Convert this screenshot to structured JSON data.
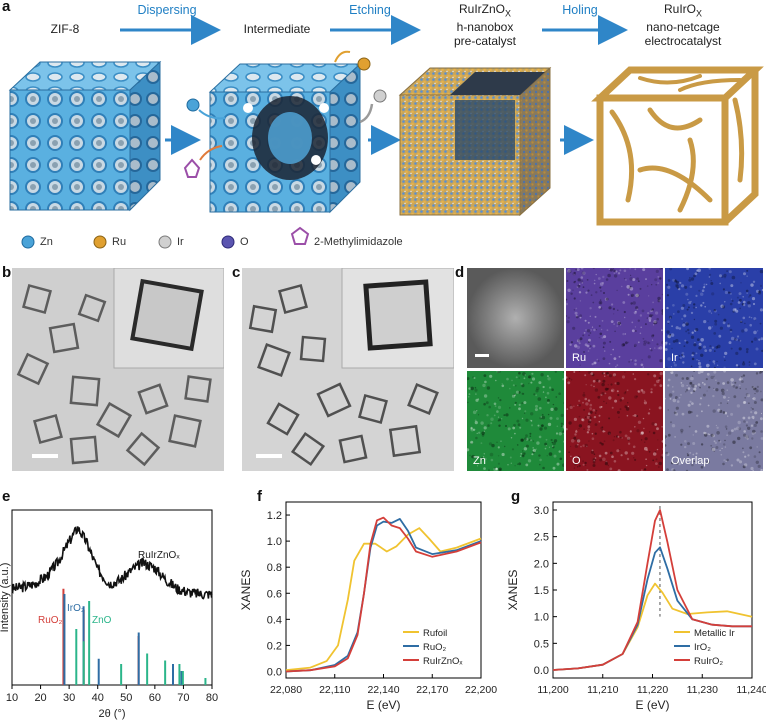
{
  "panel_letters": {
    "a": "a",
    "b": "b",
    "c": "c",
    "d": "d",
    "e": "e",
    "f": "f",
    "g": "g"
  },
  "panel_a": {
    "stages": {
      "s1": "ZIF-8",
      "s2": "Intermediate",
      "s3_line1": "RuIrZnO",
      "s3_sub": "X",
      "s3_line2": "h-nanobox",
      "s3_line3": "pre-catalyst",
      "s4_line1": "RuIrO",
      "s4_sub": "X",
      "s4_line2": "nano-netcage",
      "s4_line3": "electrocatalyst"
    },
    "steps": [
      "Dispersing",
      "Etching",
      "Holing"
    ],
    "legend": [
      {
        "label": "Zn",
        "color": "#4aa3d8"
      },
      {
        "label": "Ru",
        "color": "#e0a030"
      },
      {
        "label": "Ir",
        "color": "#cfcfcf"
      },
      {
        "label": "O",
        "color": "#5b55b0"
      },
      {
        "label": "2-Methylimidazole",
        "color": "#9b4fa8"
      }
    ],
    "colors": {
      "arrow": "#2f86c8",
      "zif_blue": "#4aa3d8",
      "ru_orange": "#d9a040",
      "dark_core": "#1a2a3a"
    }
  },
  "panel_d": {
    "labels": [
      "Ru",
      "Ir",
      "Zn",
      "O",
      "Overlap"
    ],
    "colors": {
      "ru": "#5a3f9e",
      "ir": "#2a3fa8",
      "zn": "#1f8a3a",
      "o": "#8a1420",
      "overlap": "#7a7aa0"
    }
  },
  "chart_data": [
    {
      "panel": "e",
      "type": "line",
      "ylabel": "Intensity (a.u.)",
      "xlabel": "2θ (°)",
      "xlim": [
        10,
        80
      ],
      "xticks": [
        10,
        20,
        30,
        40,
        50,
        60,
        70,
        80
      ],
      "series_label": "RuIrZnOₓ",
      "curve_x": [
        10,
        14,
        18,
        22,
        26,
        30,
        33,
        36,
        40,
        44,
        48,
        52,
        56,
        60,
        64,
        68,
        72,
        76,
        80
      ],
      "curve_y": [
        0.55,
        0.56,
        0.58,
        0.62,
        0.7,
        0.82,
        0.9,
        0.82,
        0.66,
        0.58,
        0.6,
        0.66,
        0.7,
        0.67,
        0.6,
        0.55,
        0.53,
        0.52,
        0.52
      ],
      "references": [
        {
          "name": "RuO₂",
          "color": "#d43f3a",
          "x": [
            28.0,
            35.1,
            54.3
          ],
          "h": [
            0.55,
            0.43,
            0.28
          ]
        },
        {
          "name": "IrO₂",
          "color": "#2e6da4",
          "x": [
            28.0,
            34.7,
            40.0,
            54.0,
            66.0,
            69.0
          ],
          "h": [
            0.52,
            0.45,
            0.15,
            0.3,
            0.12,
            0.08
          ]
        },
        {
          "name": "ZnO",
          "color": "#2bb58a",
          "x": [
            31.8,
            34.4,
            36.3,
            47.5,
            56.6,
            62.9,
            67.9,
            69.1,
            77.0
          ],
          "h": [
            0.32,
            0.25,
            0.48,
            0.12,
            0.18,
            0.14,
            0.12,
            0.08,
            0.04
          ]
        }
      ]
    },
    {
      "panel": "f",
      "type": "line",
      "ylabel": "XANES",
      "xlabel": "E (eV)",
      "xlim": [
        22080,
        22200
      ],
      "ylim": [
        -0.05,
        1.3
      ],
      "xticks": [
        "22,080",
        "22,110",
        "22,140",
        "22,170",
        "22,200"
      ],
      "xtick_values": [
        22080,
        22110,
        22140,
        22170,
        22200
      ],
      "yticks": [
        "0.0",
        "0.2",
        "0.4",
        "0.6",
        "0.8",
        "1.0",
        "1.2"
      ],
      "ytick_values": [
        0,
        0.2,
        0.4,
        0.6,
        0.8,
        1.0,
        1.2
      ],
      "legend_position": "bottom-right",
      "series": [
        {
          "name": "Rufoil",
          "color": "#f0c330",
          "x": [
            22080,
            22095,
            22105,
            22112,
            22118,
            22122,
            22128,
            22135,
            22142,
            22148,
            22155,
            22162,
            22168,
            22175,
            22185,
            22200
          ],
          "y": [
            0.01,
            0.03,
            0.08,
            0.2,
            0.55,
            0.85,
            0.98,
            0.98,
            0.92,
            0.96,
            1.05,
            1.1,
            1.02,
            0.92,
            0.95,
            1.02
          ]
        },
        {
          "name": "RuO₂",
          "color": "#2e6da4",
          "x": [
            22080,
            22095,
            22110,
            22118,
            22124,
            22128,
            22132,
            22136,
            22140,
            22145,
            22150,
            22155,
            22160,
            22170,
            22185,
            22200
          ],
          "y": [
            0.0,
            0.01,
            0.05,
            0.12,
            0.3,
            0.6,
            0.95,
            1.12,
            1.15,
            1.14,
            1.17,
            1.08,
            0.95,
            0.9,
            0.93,
            1.0
          ]
        },
        {
          "name": "RuIrZnOₓ",
          "color": "#d43f3a",
          "x": [
            22080,
            22095,
            22110,
            22118,
            22124,
            22128,
            22132,
            22136,
            22140,
            22145,
            22150,
            22155,
            22160,
            22170,
            22185,
            22200
          ],
          "y": [
            0.0,
            0.01,
            0.04,
            0.1,
            0.28,
            0.6,
            0.98,
            1.16,
            1.18,
            1.12,
            1.1,
            1.02,
            0.92,
            0.88,
            0.92,
            0.99
          ]
        }
      ]
    },
    {
      "panel": "g",
      "type": "line",
      "ylabel": "XANES",
      "xlabel": "E (eV)",
      "xlim": [
        11200,
        11240
      ],
      "ylim": [
        -0.15,
        3.15
      ],
      "xticks": [
        "11,200",
        "11,210",
        "11,220",
        "11,230",
        "11,240"
      ],
      "xtick_values": [
        11200,
        11210,
        11220,
        11230,
        11240
      ],
      "yticks": [
        "0.0",
        "0.5",
        "1.0",
        "1.5",
        "2.0",
        "2.5",
        "3.0"
      ],
      "ytick_values": [
        0,
        0.5,
        1.0,
        1.5,
        2.0,
        2.5,
        3.0
      ],
      "legend_position": "bottom-right",
      "dashed_marker_x": 11221.5,
      "series": [
        {
          "name": "Metallic Ir",
          "color": "#f0c330",
          "x": [
            11200,
            11205,
            11210,
            11214,
            11217,
            11219,
            11220.5,
            11222,
            11224,
            11227,
            11231,
            11235,
            11240
          ],
          "y": [
            0.0,
            0.03,
            0.1,
            0.3,
            0.8,
            1.4,
            1.62,
            1.45,
            1.15,
            1.05,
            1.08,
            1.1,
            1.0
          ]
        },
        {
          "name": "IrO₂",
          "color": "#2e6da4",
          "x": [
            11200,
            11205,
            11210,
            11214,
            11217,
            11219,
            11220.5,
            11221.5,
            11223,
            11225,
            11228,
            11232,
            11236,
            11240
          ],
          "y": [
            0.0,
            0.03,
            0.1,
            0.3,
            0.85,
            1.7,
            2.2,
            2.3,
            1.9,
            1.3,
            0.95,
            0.85,
            0.82,
            0.82
          ]
        },
        {
          "name": "RuIrO₂",
          "color": "#d43f3a",
          "x": [
            11200,
            11205,
            11210,
            11214,
            11217,
            11219,
            11220.5,
            11221.5,
            11223,
            11225,
            11228,
            11232,
            11236,
            11240
          ],
          "y": [
            0.0,
            0.03,
            0.1,
            0.3,
            0.9,
            2.0,
            2.8,
            3.0,
            2.4,
            1.5,
            0.95,
            0.85,
            0.82,
            0.82
          ]
        }
      ]
    }
  ]
}
